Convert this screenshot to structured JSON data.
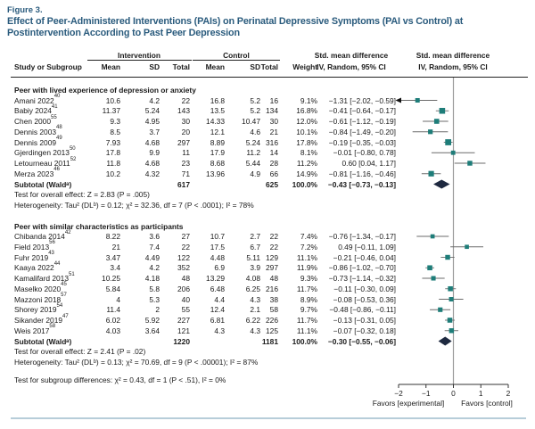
{
  "colors": {
    "title": "#2a5b7d",
    "marker": "#1e7d79",
    "diamond": "#1e2940",
    "ci_line": "#6b6b6b",
    "axis": "#333333",
    "zero_line": "#9b9b9b",
    "bottom_rule": "#b7cdd9"
  },
  "figure": {
    "label": "Figure 3.",
    "title": "Effect of Peer-Administered Interventions (PAIs) on Perinatal Depressive Symptoms (PAI vs Control) at Postintervention According to Past Peer Depression"
  },
  "table": {
    "headers": {
      "study": "Study or Subgroup",
      "intervention": "Intervention",
      "control": "Control",
      "mean": "Mean",
      "sd": "SD",
      "total": "Total",
      "weight": "Weight",
      "smd": "Std. mean difference",
      "method": "IV, Random, 95% CI"
    }
  },
  "chart_data": {
    "type": "forest",
    "xlim": [
      -2,
      2
    ],
    "x_ticks": [
      -2,
      -1,
      0,
      1,
      2
    ],
    "favors_left": "Favors [experimental]",
    "favors_right": "Favors [control]",
    "subgroup_test": "Test for subgroup differences: χ² = 0.43, df = 1 (P < .51), I² = 0%",
    "groups": [
      {
        "label": "Peer with lived experience of depression or anxiety",
        "studies": [
          {
            "name": "Amani 2022",
            "ref": "40",
            "i_mean": "10.6",
            "i_sd": "4.2",
            "i_total": "22",
            "c_mean": "16.8",
            "c_sd": "5.2",
            "c_total": "16",
            "weight": "9.1%",
            "ci": "−1.31 [−2.02, −0.59]",
            "est": -1.31,
            "lo": -2.02,
            "hi": -0.59,
            "arrow_lo": true
          },
          {
            "name": "Babiy 2024",
            "ref": "41",
            "i_mean": "11.37",
            "i_sd": "5.24",
            "i_total": "143",
            "c_mean": "13.5",
            "c_sd": "5.2",
            "c_total": "134",
            "weight": "16.8%",
            "ci": "−0.41 [−0.64, −0.17]",
            "est": -0.41,
            "lo": -0.64,
            "hi": -0.17
          },
          {
            "name": "Chen 2000",
            "ref": "55",
            "i_mean": "9.3",
            "i_sd": "4.95",
            "i_total": "30",
            "c_mean": "14.33",
            "c_sd": "10.47",
            "c_total": "30",
            "weight": "12.0%",
            "ci": "−0.61 [−1.12, −0.19]",
            "est": -0.61,
            "lo": -1.12,
            "hi": -0.19
          },
          {
            "name": "Dennis 2003",
            "ref": "48",
            "i_mean": "8.5",
            "i_sd": "3.7",
            "i_total": "20",
            "c_mean": "12.1",
            "c_sd": "4.6",
            "c_total": "21",
            "weight": "10.1%",
            "ci": "−0.84 [−1.49, −0.20]",
            "est": -0.84,
            "lo": -1.49,
            "hi": -0.2
          },
          {
            "name": "Dennis 2009",
            "ref": "49",
            "i_mean": "7.93",
            "i_sd": "4.68",
            "i_total": "297",
            "c_mean": "8.89",
            "c_sd": "5.24",
            "c_total": "316",
            "weight": "17.8%",
            "ci": "−0.19 [−0.35, −0.03]",
            "est": -0.19,
            "lo": -0.35,
            "hi": -0.03
          },
          {
            "name": "Gjerdingen 2013",
            "ref": "50",
            "i_mean": "17.8",
            "i_sd": "9.9",
            "i_total": "11",
            "c_mean": "17.9",
            "c_sd": "11.2",
            "c_total": "14",
            "weight": "8.1%",
            "ci": "−0.01 [−0.80, 0.78]",
            "est": -0.01,
            "lo": -0.8,
            "hi": 0.78
          },
          {
            "name": "Letourneau 2011",
            "ref": "52",
            "i_mean": "11.8",
            "i_sd": "4.68",
            "i_total": "23",
            "c_mean": "8.68",
            "c_sd": "5.44",
            "c_total": "28",
            "weight": "11.2%",
            "ci": "0.60 [0.04, 1.17]",
            "est": 0.6,
            "lo": 0.04,
            "hi": 1.17
          },
          {
            "name": "Merza 2023",
            "ref": "46",
            "i_mean": "10.2",
            "i_sd": "4.32",
            "i_total": "71",
            "c_mean": "13.96",
            "c_sd": "4.9",
            "c_total": "66",
            "weight": "14.9%",
            "ci": "−0.81 [−1.16, −0.46]",
            "est": -0.81,
            "lo": -1.16,
            "hi": -0.46
          }
        ],
        "subtotal": {
          "label": "Subtotal (Waldᵃ)",
          "i_total": "617",
          "c_total": "625",
          "weight": "100.0%",
          "ci": "−0.43 [−0.73, −0.13]",
          "est": -0.43,
          "lo": -0.73,
          "hi": -0.13
        },
        "overall_effect": "Test for overall effect: Z = 2.83 (P = .005)",
        "heterogeneity": "Heterogeneity: Tau² (DLᵇ) = 0.12; χ² = 32.36, df = 7 (P < .0001); I² = 78%"
      },
      {
        "label": "Peer with similar characteristics as participants",
        "studies": [
          {
            "name": "Chibanda 2014",
            "ref": "42",
            "i_mean": "8.22",
            "i_sd": "3.6",
            "i_total": "27",
            "c_mean": "10.7",
            "c_sd": "2.7",
            "c_total": "22",
            "weight": "7.4%",
            "ci": "−0.76 [−1.34, −0.17]",
            "est": -0.76,
            "lo": -1.34,
            "hi": -0.17
          },
          {
            "name": "Field 2013",
            "ref": "56",
            "i_mean": "21",
            "i_sd": "7.4",
            "i_total": "22",
            "c_mean": "17.5",
            "c_sd": "6.7",
            "c_total": "22",
            "weight": "7.2%",
            "ci": "0.49 [−0.11, 1.09]",
            "est": 0.49,
            "lo": -0.11,
            "hi": 1.09
          },
          {
            "name": "Fuhr 2019",
            "ref": "43",
            "i_mean": "3.47",
            "i_sd": "4.49",
            "i_total": "122",
            "c_mean": "4.48",
            "c_sd": "5.11",
            "c_total": "129",
            "weight": "11.1%",
            "ci": "−0.21 [−0.46, 0.04]",
            "est": -0.21,
            "lo": -0.46,
            "hi": 0.04
          },
          {
            "name": "Kaaya 2022",
            "ref": "44",
            "i_mean": "3.4",
            "i_sd": "4.2",
            "i_total": "352",
            "c_mean": "6.9",
            "c_sd": "3.9",
            "c_total": "297",
            "weight": "11.9%",
            "ci": "−0.86 [−1.02, −0.70]",
            "est": -0.86,
            "lo": -1.02,
            "hi": -0.7
          },
          {
            "name": "Kamalifard 2013",
            "ref": "51",
            "i_mean": "10.25",
            "i_sd": "4.18",
            "i_total": "48",
            "c_mean": "13.29",
            "c_sd": "4.08",
            "c_total": "48",
            "weight": "9.3%",
            "ci": "−0.73 [−1.14, −0.32]",
            "est": -0.73,
            "lo": -1.14,
            "hi": -0.32
          },
          {
            "name": "Maselko 2020",
            "ref": "45",
            "i_mean": "5.84",
            "i_sd": "5.8",
            "i_total": "206",
            "c_mean": "6.48",
            "c_sd": "6.25",
            "c_total": "216",
            "weight": "11.7%",
            "ci": "−0.11 [−0.30, 0.09]",
            "est": -0.11,
            "lo": -0.3,
            "hi": 0.09
          },
          {
            "name": "Mazzoni 2018",
            "ref": "57",
            "i_mean": "4",
            "i_sd": "5.3",
            "i_total": "40",
            "c_mean": "4.4",
            "c_sd": "4.3",
            "c_total": "38",
            "weight": "8.9%",
            "ci": "−0.08 [−0.53, 0.36]",
            "est": -0.08,
            "lo": -0.53,
            "hi": 0.36
          },
          {
            "name": "Shorey 2019",
            "ref": "54",
            "i_mean": "11.4",
            "i_sd": "2",
            "i_total": "55",
            "c_mean": "12.4",
            "c_sd": "2.1",
            "c_total": "58",
            "weight": "9.7%",
            "ci": "−0.48 [−0.86, −0.11]",
            "est": -0.48,
            "lo": -0.86,
            "hi": -0.11
          },
          {
            "name": "Sikander 2019",
            "ref": "47",
            "i_mean": "6.02",
            "i_sd": "5.92",
            "i_total": "227",
            "c_mean": "6.81",
            "c_sd": "6.22",
            "c_total": "226",
            "weight": "11.7%",
            "ci": "−0.13 [−0.31, 0.05]",
            "est": -0.13,
            "lo": -0.31,
            "hi": 0.05
          },
          {
            "name": "Weis 2017",
            "ref": "58",
            "i_mean": "4.03",
            "i_sd": "3.64",
            "i_total": "121",
            "c_mean": "4.3",
            "c_sd": "4.3",
            "c_total": "125",
            "weight": "11.1%",
            "ci": "−0.07 [−0.32, 0.18]",
            "est": -0.07,
            "lo": -0.32,
            "hi": 0.18
          }
        ],
        "subtotal": {
          "label": "Subtotal (Waldᵃ)",
          "i_total": "1220",
          "c_total": "1181",
          "weight": "100.0%",
          "ci": "−0.30 [−0.55, −0.06]",
          "est": -0.3,
          "lo": -0.55,
          "hi": -0.06
        },
        "overall_effect": "Test for overall effect: Z = 2.41 (P = .02)",
        "heterogeneity": "Heterogeneity: Tau² (DLᵇ) = 0.13; χ² = 70.69, df = 9 (P < .00001); I² = 87%"
      }
    ]
  }
}
